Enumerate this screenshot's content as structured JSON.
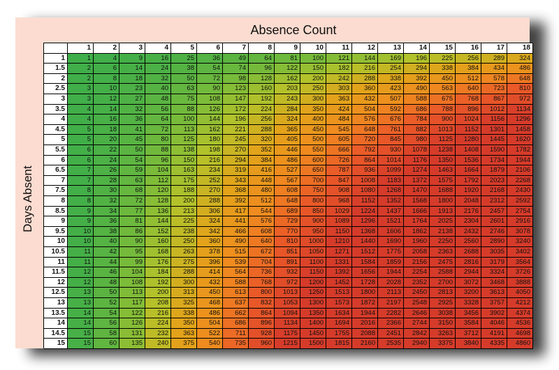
{
  "chart_data": {
    "type": "heatmap",
    "title": "Absence Count",
    "xlabel": "Absence Count",
    "ylabel": "Days Absent",
    "columns": [
      "1",
      "2",
      "3",
      "4",
      "5",
      "6",
      "7",
      "8",
      "9",
      "10",
      "11",
      "12",
      "13",
      "14",
      "15",
      "16",
      "17",
      "18"
    ],
    "rows": [
      "1",
      "1.5",
      "2",
      "2.5",
      "3",
      "3.5",
      "4",
      "4.5",
      "5",
      "5.5",
      "6",
      "6.5",
      "7",
      "7.5",
      "8",
      "8.5",
      "9",
      "9.5",
      "10",
      "10.5",
      "11",
      "11.5",
      "12",
      "12.5",
      "13",
      "13.5",
      "14",
      "14.5",
      "15"
    ],
    "values": [
      [
        1,
        4,
        9,
        16,
        25,
        36,
        49,
        64,
        81,
        100,
        121,
        144,
        169,
        196,
        225,
        256,
        289,
        324
      ],
      [
        2,
        6,
        14,
        24,
        38,
        54,
        74,
        96,
        122,
        150,
        182,
        216,
        254,
        294,
        338,
        384,
        434,
        486
      ],
      [
        2,
        8,
        18,
        32,
        50,
        72,
        98,
        128,
        162,
        200,
        242,
        288,
        338,
        392,
        450,
        512,
        578,
        648
      ],
      [
        3,
        10,
        23,
        40,
        63,
        90,
        123,
        160,
        203,
        250,
        303,
        360,
        423,
        490,
        563,
        640,
        723,
        810
      ],
      [
        3,
        12,
        27,
        48,
        75,
        108,
        147,
        192,
        243,
        300,
        363,
        432,
        507,
        588,
        675,
        768,
        867,
        972
      ],
      [
        4,
        14,
        32,
        56,
        88,
        126,
        172,
        224,
        284,
        350,
        424,
        504,
        592,
        686,
        788,
        896,
        1012,
        1134
      ],
      [
        4,
        16,
        36,
        64,
        100,
        144,
        196,
        256,
        324,
        400,
        484,
        576,
        676,
        784,
        900,
        1024,
        1156,
        1296
      ],
      [
        5,
        18,
        41,
        72,
        113,
        162,
        221,
        288,
        365,
        450,
        545,
        648,
        761,
        882,
        1013,
        1152,
        1301,
        1458
      ],
      [
        5,
        20,
        45,
        80,
        125,
        180,
        245,
        320,
        405,
        500,
        605,
        720,
        845,
        980,
        1125,
        1280,
        1445,
        1620
      ],
      [
        6,
        22,
        50,
        88,
        138,
        198,
        270,
        352,
        446,
        550,
        666,
        792,
        930,
        1078,
        1238,
        1408,
        1590,
        1782
      ],
      [
        6,
        24,
        54,
        96,
        150,
        216,
        294,
        384,
        486,
        600,
        726,
        864,
        1014,
        1176,
        1350,
        1536,
        1734,
        1944
      ],
      [
        7,
        26,
        59,
        104,
        163,
        234,
        319,
        416,
        527,
        650,
        787,
        936,
        1099,
        1274,
        1463,
        1664,
        1879,
        2106
      ],
      [
        7,
        28,
        63,
        112,
        175,
        252,
        343,
        448,
        567,
        700,
        847,
        1008,
        1183,
        1372,
        1575,
        1792,
        2023,
        2268
      ],
      [
        8,
        30,
        68,
        120,
        188,
        270,
        368,
        480,
        608,
        750,
        908,
        1080,
        1268,
        1470,
        1688,
        1920,
        2168,
        2430
      ],
      [
        8,
        32,
        72,
        128,
        200,
        288,
        392,
        512,
        648,
        800,
        968,
        1152,
        1352,
        1568,
        1800,
        2048,
        2312,
        2592
      ],
      [
        9,
        34,
        77,
        136,
        213,
        306,
        417,
        544,
        689,
        850,
        1029,
        1224,
        1437,
        1666,
        1913,
        2176,
        2457,
        2754
      ],
      [
        9,
        36,
        81,
        144,
        225,
        324,
        441,
        576,
        729,
        900,
        1089,
        1296,
        1521,
        1764,
        2025,
        2304,
        2601,
        2916
      ],
      [
        10,
        38,
        86,
        152,
        238,
        342,
        466,
        608,
        770,
        950,
        1150,
        1368,
        1606,
        1862,
        2138,
        2432,
        2746,
        3078
      ],
      [
        10,
        40,
        90,
        160,
        250,
        360,
        490,
        640,
        810,
        1000,
        1210,
        1440,
        1690,
        1960,
        2250,
        2560,
        2890,
        3240
      ],
      [
        11,
        42,
        95,
        168,
        263,
        378,
        515,
        672,
        851,
        1050,
        1271,
        1512,
        1775,
        2058,
        2363,
        2688,
        3035,
        3402
      ],
      [
        11,
        44,
        99,
        176,
        275,
        396,
        539,
        704,
        891,
        1100,
        1331,
        1584,
        1859,
        2156,
        2475,
        2816,
        3179,
        3564
      ],
      [
        12,
        46,
        104,
        184,
        288,
        414,
        564,
        736,
        932,
        1150,
        1392,
        1656,
        1944,
        2254,
        2588,
        2944,
        3324,
        3726
      ],
      [
        12,
        48,
        108,
        192,
        300,
        432,
        588,
        768,
        972,
        1200,
        1452,
        1728,
        2028,
        2352,
        2700,
        3072,
        3468,
        3888
      ],
      [
        13,
        50,
        113,
        200,
        313,
        450,
        613,
        800,
        1013,
        1250,
        1513,
        1800,
        2113,
        2450,
        2813,
        3200,
        3613,
        4050
      ],
      [
        13,
        52,
        117,
        208,
        325,
        468,
        637,
        832,
        1053,
        1300,
        1573,
        1872,
        2197,
        2548,
        2925,
        3328,
        3757,
        4212
      ],
      [
        14,
        54,
        122,
        216,
        338,
        486,
        662,
        864,
        1094,
        1350,
        1634,
        1944,
        2282,
        2646,
        3038,
        3456,
        3902,
        4374
      ],
      [
        14,
        56,
        126,
        224,
        350,
        504,
        686,
        896,
        1134,
        1400,
        1694,
        2016,
        2366,
        2744,
        3150,
        3584,
        4046,
        4536
      ],
      [
        15,
        58,
        131,
        232,
        363,
        522,
        711,
        928,
        1175,
        1450,
        1755,
        2088,
        2451,
        2842,
        3263,
        3712,
        4191,
        4698
      ],
      [
        15,
        60,
        135,
        240,
        375,
        540,
        735,
        960,
        1215,
        1500,
        1815,
        2160,
        2535,
        2940,
        3375,
        3840,
        4335,
        4860
      ]
    ],
    "color_scale": [
      "#3fae49",
      "#78bb3a",
      "#b3c22a",
      "#e2a41a",
      "#f08a1f",
      "#ea5a28",
      "#d63b2a"
    ],
    "grid": true,
    "legend": "none"
  }
}
